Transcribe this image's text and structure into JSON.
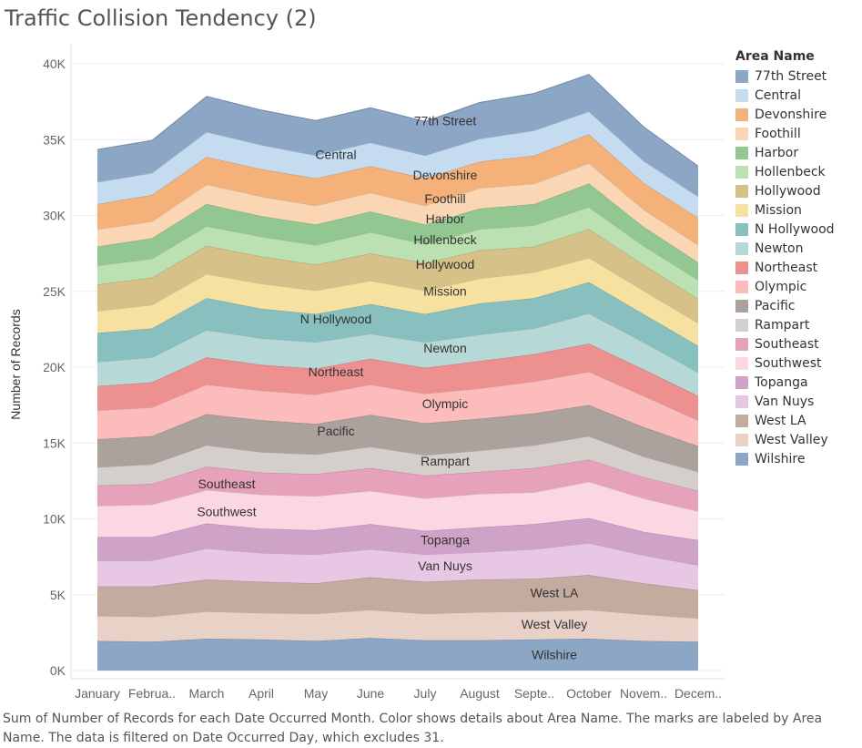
{
  "title": "Traffic Collision Tendency (2)",
  "caption": "Sum of Number of Records for each Date Occurred Month.  Color shows details about Area Name.  The marks are labeled by Area Name. The data is filtered on Date Occurred Day, which excludes 31.",
  "legend": {
    "title": "Area Name",
    "position": "right"
  },
  "chart_data": {
    "type": "area",
    "stacked": true,
    "ylabel": "Number of Records",
    "xlabel": "",
    "ylim": [
      0,
      42000
    ],
    "grid": true,
    "yticks": [
      0,
      5000,
      10000,
      15000,
      20000,
      25000,
      30000,
      35000,
      40000
    ],
    "ytick_labels": [
      "0K",
      "5K",
      "10K",
      "15K",
      "20K",
      "25K",
      "30K",
      "35K",
      "40K"
    ],
    "categories": [
      "January",
      "Februa..",
      "March",
      "April",
      "May",
      "June",
      "July",
      "August",
      "Septe..",
      "October",
      "Novem..",
      "Decem.."
    ],
    "series": [
      {
        "name": "Wilshire",
        "color": "#8ca6c6",
        "label_at": 9,
        "values": [
          1950,
          1900,
          2100,
          2050,
          1950,
          2150,
          2000,
          2000,
          2050,
          2100,
          1950,
          1900
        ]
      },
      {
        "name": "West Valley",
        "color": "#e8d1c7",
        "label_at": 9,
        "values": [
          1650,
          1650,
          1800,
          1750,
          1800,
          1850,
          1750,
          1850,
          1850,
          1900,
          1750,
          1550
        ]
      },
      {
        "name": "West LA",
        "color": "#c4aba0",
        "label_at": 9,
        "values": [
          1950,
          2000,
          2100,
          2050,
          2000,
          2150,
          2100,
          2150,
          2150,
          2300,
          2050,
          1850
        ]
      },
      {
        "name": "Van Nuys",
        "color": "#e8c7e4",
        "label_at": 7,
        "values": [
          1700,
          1700,
          2050,
          1900,
          1900,
          1850,
          1800,
          1800,
          1950,
          2100,
          1850,
          1650
        ]
      },
      {
        "name": "Topanga",
        "color": "#cfa3c8",
        "label_at": 7,
        "values": [
          1550,
          1550,
          1650,
          1600,
          1600,
          1650,
          1550,
          1650,
          1650,
          1650,
          1550,
          1650
        ]
      },
      {
        "name": "Southwest",
        "color": "#fbd7e4",
        "label_at": 3,
        "values": [
          2050,
          2150,
          2200,
          2250,
          2250,
          2200,
          2150,
          2200,
          2100,
          2400,
          2200,
          1900
        ]
      },
      {
        "name": "Southeast",
        "color": "#e7a2bb",
        "label_at": 3,
        "values": [
          1350,
          1350,
          1550,
          1450,
          1450,
          1500,
          1500,
          1450,
          1600,
          1450,
          1400,
          1350
        ]
      },
      {
        "name": "Rampart",
        "color": "#d5cfcc",
        "label_at": 7,
        "values": [
          1200,
          1300,
          1400,
          1350,
          1300,
          1400,
          1350,
          1400,
          1500,
          1550,
          1350,
          1250
        ]
      },
      {
        "name": "Pacific",
        "color": "#aba29d",
        "label_at": 5,
        "values": [
          1850,
          1850,
          2050,
          2100,
          2000,
          2100,
          2100,
          2100,
          2100,
          2050,
          1950,
          1700
        ]
      },
      {
        "name": "Olympic",
        "color": "#fdbcbc",
        "label_at": 7,
        "values": [
          1900,
          1900,
          1950,
          1950,
          1950,
          2000,
          1950,
          2000,
          2100,
          2200,
          2050,
          1700
        ]
      },
      {
        "name": "Northeast",
        "color": "#ed9190",
        "label_at": 5,
        "values": [
          1600,
          1650,
          1800,
          1700,
          1700,
          1700,
          1700,
          1800,
          1800,
          1850,
          1750,
          1600
        ]
      },
      {
        "name": "Newton",
        "color": "#b6d8d6",
        "label_at": 7,
        "values": [
          1600,
          1650,
          1800,
          1750,
          1750,
          1650,
          1700,
          1750,
          1700,
          2000,
          1800,
          1550
        ]
      },
      {
        "name": "N Hollywood",
        "color": "#88c0c0",
        "label_at": 5,
        "values": [
          1900,
          1900,
          2100,
          1950,
          1850,
          1950,
          1850,
          2050,
          2000,
          2050,
          1850,
          1750
        ]
      },
      {
        "name": "Mission",
        "color": "#f7e1a1",
        "label_at": 7,
        "values": [
          1450,
          1550,
          1600,
          1650,
          1550,
          1550,
          1550,
          1650,
          1700,
          1600,
          1550,
          1500
        ]
      },
      {
        "name": "Hollywood",
        "color": "#d6c189",
        "label_at": 7,
        "values": [
          1750,
          1800,
          1850,
          1800,
          1700,
          1800,
          1800,
          1850,
          1700,
          1900,
          1700,
          1600
        ]
      },
      {
        "name": "Hollenbeck",
        "color": "#bbe0b1",
        "label_at": 7,
        "values": [
          1250,
          1250,
          1300,
          1300,
          1300,
          1400,
          1250,
          1400,
          1400,
          1450,
          1250,
          1250
        ]
      },
      {
        "name": "Harbor",
        "color": "#93c791",
        "label_at": 7,
        "values": [
          1250,
          1350,
          1450,
          1350,
          1350,
          1350,
          1300,
          1350,
          1400,
          1550,
          1250,
          1150
        ]
      },
      {
        "name": "Foothill",
        "color": "#fbd6b4",
        "label_at": 7,
        "values": [
          1150,
          1100,
          1300,
          1300,
          1250,
          1250,
          1250,
          1350,
          1350,
          1350,
          1150,
          1150
        ]
      },
      {
        "name": "Devonshire",
        "color": "#f4b27a",
        "label_at": 7,
        "values": [
          1650,
          1750,
          1800,
          1800,
          1800,
          1750,
          1800,
          1750,
          1850,
          1900,
          1750,
          1800
        ]
      },
      {
        "name": "Central",
        "color": "#c5dcf0",
        "label_at": 5,
        "values": [
          1450,
          1450,
          1650,
          1600,
          1500,
          1550,
          1500,
          1500,
          1650,
          1500,
          1450,
          1400
        ]
      },
      {
        "name": "77th Street",
        "color": "#8ca6c6",
        "label_at": 7,
        "values": [
          2150,
          2150,
          2350,
          2300,
          2300,
          2300,
          2250,
          2400,
          2450,
          2450,
          2250,
          2000
        ]
      }
    ]
  }
}
